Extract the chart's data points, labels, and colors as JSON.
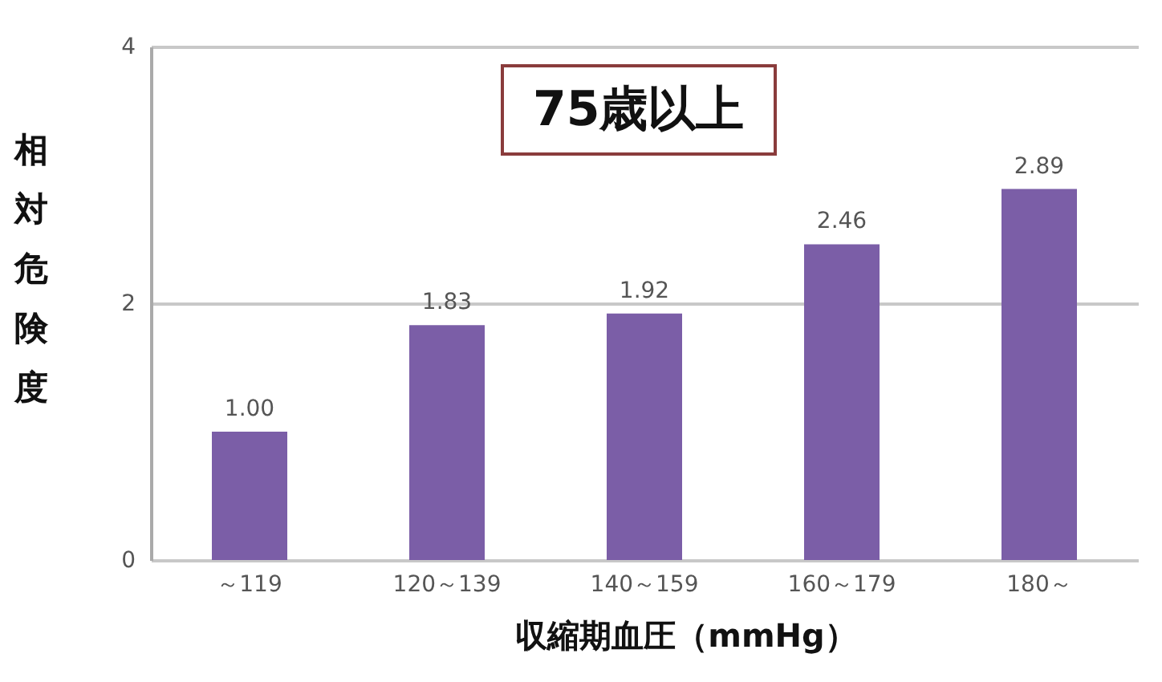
{
  "chart_data": {
    "type": "bar",
    "title": "75歳以上",
    "xlabel": "収縮期血圧（mmHg）",
    "ylabel": "相対危険度",
    "categories": [
      "～119",
      "120～139",
      "140～159",
      "160～179",
      "180～"
    ],
    "values": [
      1.0,
      1.83,
      1.92,
      2.46,
      2.89
    ],
    "color": "#7b5ea7",
    "value_labels": [
      "1.00",
      "1.83",
      "1.92",
      "2.46",
      "2.89"
    ],
    "ylim": [
      0,
      4
    ],
    "yticks": [
      0,
      2,
      4
    ],
    "grid": "y"
  }
}
